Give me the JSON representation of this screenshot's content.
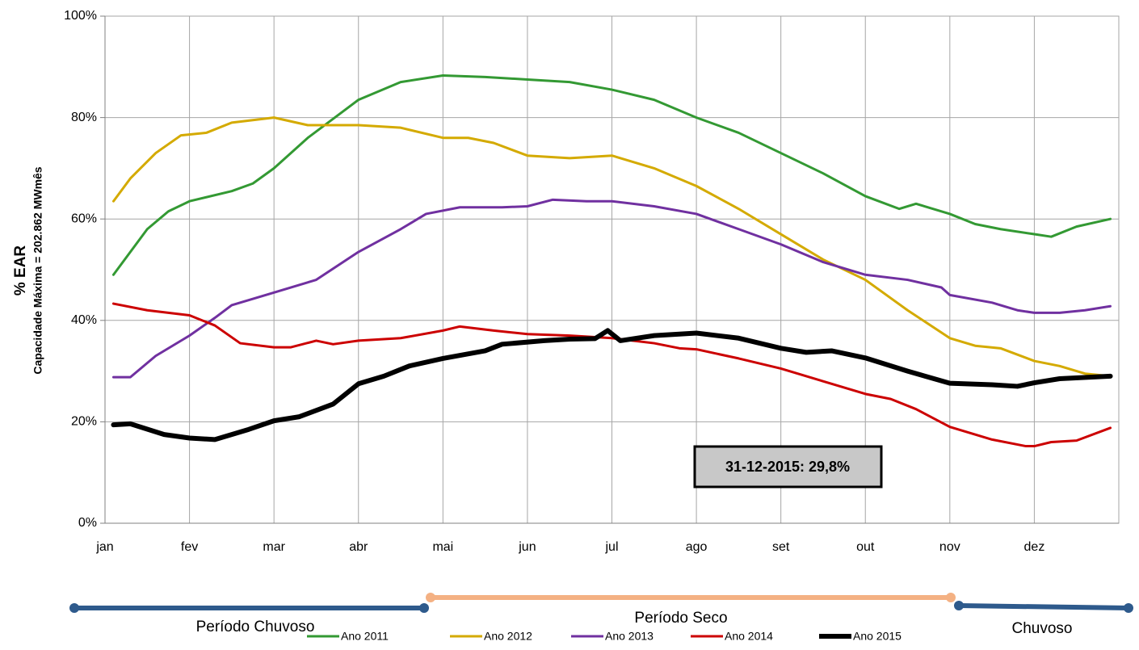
{
  "chart_data": {
    "type": "line",
    "y_label": "% EAR",
    "y_sublabel": "Capacidade Máxima = 202.862 MWmês",
    "annotation": "31-12-2015: 29,8%",
    "periods": [
      "Período Chuvoso",
      "Período Seco",
      "Chuvoso"
    ],
    "xlim": [
      0,
      12
    ],
    "xticks": [
      {
        "value": 0,
        "label": "jan"
      },
      {
        "value": 1,
        "label": "fev"
      },
      {
        "value": 2,
        "label": "mar"
      },
      {
        "value": 3,
        "label": "abr"
      },
      {
        "value": 4,
        "label": "mai"
      },
      {
        "value": 5,
        "label": "jun"
      },
      {
        "value": 6,
        "label": "jul"
      },
      {
        "value": 7,
        "label": "ago"
      },
      {
        "value": 8,
        "label": "set"
      },
      {
        "value": 9,
        "label": "out"
      },
      {
        "value": 10,
        "label": "nov"
      },
      {
        "value": 11,
        "label": "dez"
      }
    ],
    "ylim": [
      0,
      100
    ],
    "yticks": [
      {
        "value": 0,
        "label": "0%"
      },
      {
        "value": 20,
        "label": "20%"
      },
      {
        "value": 40,
        "label": "40%"
      },
      {
        "value": 60,
        "label": "60%"
      },
      {
        "value": 80,
        "label": "80%"
      },
      {
        "value": 100,
        "label": "100%"
      }
    ],
    "grid": true,
    "series": [
      {
        "name": "Ano 2011",
        "color": "#339933",
        "width": 3,
        "x": [
          0.1,
          0.5,
          0.75,
          1,
          1.5,
          1.75,
          2,
          2.4,
          3,
          3.5,
          4,
          4.5,
          5,
          5.5,
          6,
          6.5,
          7,
          7.5,
          8,
          8.5,
          9,
          9.4,
          9.6,
          10,
          10.3,
          10.6,
          11,
          11.2,
          11.5,
          11.9
        ],
        "values": [
          49,
          58,
          61.5,
          63.5,
          65.5,
          67,
          70,
          76,
          83.5,
          87,
          88.3,
          88,
          87.5,
          87,
          85.5,
          83.5,
          80,
          77,
          73,
          69,
          64.5,
          62,
          63,
          61,
          59,
          58,
          57,
          56.5,
          58.5,
          60
        ]
      },
      {
        "name": "Ano 2012",
        "color": "#d4aa00",
        "width": 3,
        "x": [
          0.1,
          0.3,
          0.6,
          0.9,
          1.2,
          1.5,
          2,
          2.4,
          3,
          3.5,
          4,
          4.3,
          4.6,
          5,
          5.5,
          6,
          6.5,
          7,
          7.5,
          8,
          8.5,
          9,
          9.5,
          10,
          10.3,
          10.6,
          11,
          11.3,
          11.6,
          11.9
        ],
        "values": [
          63.5,
          68,
          73,
          76.5,
          77,
          79,
          80,
          78.5,
          78.5,
          78,
          76,
          76,
          75,
          72.5,
          72,
          72.5,
          70,
          66.5,
          62,
          57,
          52,
          48,
          42,
          36.5,
          35,
          34.5,
          32,
          31,
          29.5,
          29
        ]
      },
      {
        "name": "Ano 2013",
        "color": "#7030a0",
        "width": 3,
        "x": [
          0.1,
          0.3,
          0.6,
          1,
          1.3,
          1.5,
          2,
          2.5,
          3,
          3.5,
          3.8,
          4.2,
          4.7,
          5,
          5.3,
          5.7,
          6,
          6.5,
          7,
          7.5,
          8,
          8.5,
          9,
          9.5,
          9.9,
          10,
          10.5,
          10.8,
          11,
          11.3,
          11.6,
          11.9
        ],
        "values": [
          28.8,
          28.8,
          33,
          37,
          40.5,
          43,
          45.5,
          48,
          53.5,
          58,
          61,
          62.3,
          62.3,
          62.5,
          63.8,
          63.5,
          63.5,
          62.5,
          61,
          58,
          55,
          51.5,
          49,
          48,
          46.5,
          45,
          43.5,
          42,
          41.5,
          41.5,
          42,
          42.8
        ]
      },
      {
        "name": "Ano 2014",
        "color": "#cc0000",
        "width": 3,
        "x": [
          0.1,
          0.5,
          1,
          1.3,
          1.6,
          2,
          2.2,
          2.5,
          2.7,
          3,
          3.5,
          4,
          4.2,
          4.6,
          5,
          5.5,
          6,
          6.5,
          6.8,
          7,
          7.5,
          8,
          8.5,
          9,
          9.3,
          9.6,
          10,
          10.5,
          10.9,
          11,
          11.2,
          11.5,
          11.9
        ],
        "values": [
          43.3,
          42,
          41,
          39,
          35.5,
          34.7,
          34.7,
          36,
          35.3,
          36,
          36.5,
          38,
          38.8,
          38,
          37.3,
          37,
          36.5,
          35.5,
          34.5,
          34.3,
          32.5,
          30.5,
          28,
          25.5,
          24.5,
          22.5,
          19,
          16.5,
          15.2,
          15.2,
          16,
          16.3,
          18.8
        ]
      },
      {
        "name": "Ano 2015",
        "color": "#000000",
        "width": 6,
        "x": [
          0.1,
          0.3,
          0.7,
          1,
          1.3,
          1.7,
          2,
          2.3,
          2.7,
          3,
          3.3,
          3.6,
          4,
          4.5,
          4.7,
          5.2,
          5.5,
          5.8,
          5.95,
          6.1,
          6.5,
          7,
          7.5,
          8,
          8.3,
          8.6,
          9,
          9.5,
          10,
          10.5,
          10.8,
          11,
          11.3,
          11.9
        ],
        "values": [
          19.4,
          19.6,
          17.5,
          16.8,
          16.5,
          18.5,
          20.2,
          21,
          23.5,
          27.5,
          29,
          31,
          32.5,
          34,
          35.3,
          36,
          36.3,
          36.4,
          38,
          36,
          37,
          37.5,
          36.5,
          34.5,
          33.7,
          34,
          32.6,
          30,
          27.6,
          27.3,
          27,
          27.7,
          28.5,
          29
        ]
      }
    ]
  }
}
